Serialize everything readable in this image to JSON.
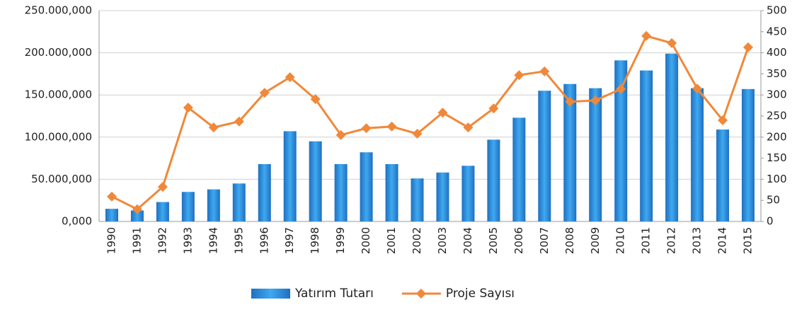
{
  "chart_data": {
    "type": "bar-line",
    "categories": [
      "1990",
      "1991",
      "1992",
      "1993",
      "1994",
      "1995",
      "1996",
      "1997",
      "1998",
      "1999",
      "2000",
      "2001",
      "2002",
      "2003",
      "2004",
      "2005",
      "2006",
      "2007",
      "2008",
      "2009",
      "2010",
      "2011",
      "2012",
      "2013",
      "2014",
      "2015"
    ],
    "series": [
      {
        "name": "Yatırım Tutarı",
        "type": "bar",
        "color": "#1f6fc0",
        "axis": "y",
        "values": [
          15000000,
          13000000,
          23000000,
          35000000,
          38000000,
          45000000,
          68000000,
          107000000,
          95000000,
          68000000,
          82000000,
          68000000,
          51000000,
          58000000,
          66000000,
          97000000,
          123000000,
          155000000,
          163000000,
          158000000,
          191000000,
          179000000,
          199000000,
          158000000,
          109000000,
          157000000
        ]
      },
      {
        "name": "Proje Sayısı",
        "type": "line",
        "color": "#f0883a",
        "axis": "y2",
        "values": [
          59,
          29,
          82,
          270,
          223,
          237,
          305,
          342,
          290,
          205,
          221,
          225,
          208,
          258,
          223,
          268,
          347,
          356,
          284,
          287,
          314,
          440,
          423,
          315,
          240,
          413
        ]
      }
    ],
    "ylim": [
      0,
      250000000
    ],
    "yticks": [
      {
        "value": 0,
        "label": "0,000"
      },
      {
        "value": 50000000,
        "label": "50.000,000"
      },
      {
        "value": 100000000,
        "label": "100.000,000"
      },
      {
        "value": 150000000,
        "label": "150.000,000"
      },
      {
        "value": 200000000,
        "label": "200.000,000"
      },
      {
        "value": 250000000,
        "label": "250.000,000"
      }
    ],
    "y2lim": [
      0,
      500
    ],
    "y2ticks": [
      0,
      50,
      100,
      150,
      200,
      250,
      300,
      350,
      400,
      450,
      500
    ],
    "grid": true,
    "legend": "bottom"
  }
}
